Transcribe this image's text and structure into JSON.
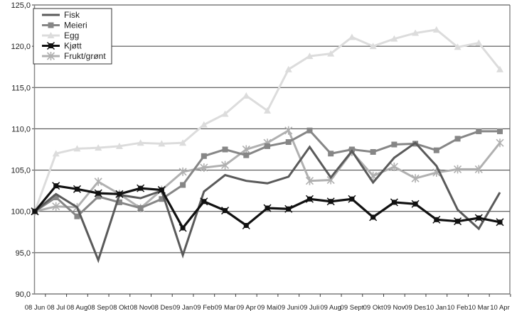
{
  "chart_data": {
    "type": "line",
    "title": "",
    "xlabel": "",
    "ylabel": "",
    "ylim": [
      90,
      125
    ],
    "yticks": [
      "90,0",
      "95,0",
      "100,0",
      "105,0",
      "110,0",
      "115,0",
      "120,0",
      "125,0"
    ],
    "ytick_values": [
      90,
      95,
      100,
      105,
      110,
      115,
      120,
      125
    ],
    "grid": true,
    "legend_position": "top-left",
    "categories": [
      "08 Jun",
      "08 Jul",
      "08 Aug",
      "08 Sep",
      "08 Okt",
      "08 Nov",
      "08 Des",
      "09 Jan",
      "09 Feb",
      "09 Mar",
      "09 Apr",
      "09 Mai",
      "09 Juni",
      "09 Juli",
      "09 Aug",
      "09 Sept",
      "09 Okt",
      "09 Nov",
      "09 Des",
      "10 Jan",
      "10 Feb",
      "10 Mar",
      "10 Apr"
    ],
    "series": [
      {
        "name": "Fisk",
        "color": "#5a5a5a",
        "marker": "none",
        "values": [
          100.0,
          102.1,
          100.5,
          94.1,
          102.0,
          101.6,
          102.5,
          94.7,
          102.4,
          104.4,
          103.7,
          103.4,
          104.2,
          107.8,
          104.1,
          107.3,
          103.5,
          106.5,
          108.3,
          105.5,
          100.2,
          97.9,
          102.3
        ]
      },
      {
        "name": "Meieri",
        "color": "#868686",
        "marker": "square",
        "values": [
          100.0,
          101.7,
          99.4,
          101.8,
          101.1,
          100.4,
          101.5,
          103.2,
          106.7,
          107.5,
          106.8,
          107.9,
          108.4,
          109.8,
          107.0,
          107.5,
          107.2,
          108.1,
          108.2,
          107.4,
          108.8,
          109.7,
          109.7
        ]
      },
      {
        "name": "Egg",
        "color": "#dcdcdc",
        "marker": "triangle",
        "values": [
          100.0,
          107.0,
          107.6,
          107.7,
          107.9,
          108.3,
          108.2,
          108.3,
          110.5,
          111.8,
          114.0,
          112.2,
          117.2,
          118.8,
          119.1,
          121.1,
          120.0,
          120.9,
          121.6,
          122.0,
          119.9,
          120.4,
          117.2
        ]
      },
      {
        "name": "Kjøtt",
        "color": "#111111",
        "marker": "x-square",
        "values": [
          100.0,
          103.1,
          102.7,
          102.2,
          102.1,
          102.8,
          102.6,
          98.0,
          101.2,
          100.1,
          98.3,
          100.4,
          100.3,
          101.5,
          101.2,
          101.5,
          99.3,
          101.1,
          100.9,
          99.0,
          98.8,
          99.2,
          98.7
        ]
      },
      {
        "name": "Frukt/grønt",
        "color": "#b0b0b0",
        "marker": "asterisk",
        "values": [
          100.0,
          100.6,
          100.5,
          103.6,
          102.1,
          100.4,
          102.6,
          104.8,
          105.3,
          105.6,
          107.5,
          108.3,
          109.8,
          103.7,
          103.8,
          107.2,
          104.3,
          105.4,
          104.0,
          104.7,
          105.1,
          105.1,
          108.3
        ]
      }
    ]
  }
}
